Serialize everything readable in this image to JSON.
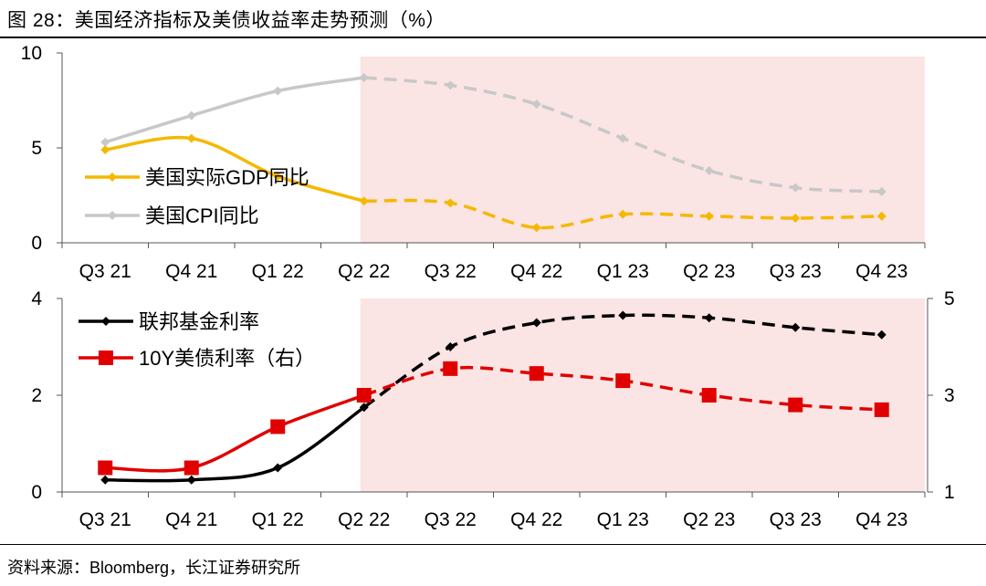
{
  "figure": {
    "title": "图 28：美国经济指标及美债收益率走势预测（%）",
    "source": "资料来源：Bloomberg，长江证券研究所",
    "forecast_shading_color": "#fbe4e4"
  },
  "chart_data": [
    {
      "type": "line",
      "title": "",
      "categories": [
        "Q3 21",
        "Q4 21",
        "Q1 22",
        "Q2 22",
        "Q3 22",
        "Q4 22",
        "Q1 23",
        "Q2 23",
        "Q3 23",
        "Q4 23"
      ],
      "ylim": [
        0,
        10
      ],
      "yticks": [
        "0",
        "5",
        "10"
      ],
      "forecast_from_index": 3,
      "legend": "left-middle",
      "series": [
        {
          "name": "美国实际GDP同比",
          "color": "#f5b800",
          "marker": "diamond",
          "axis": "left",
          "values": [
            4.9,
            5.5,
            3.5,
            2.2,
            2.1,
            0.8,
            1.5,
            1.4,
            1.3,
            1.4
          ]
        },
        {
          "name": "美国CPI同比",
          "color": "#c8c8c8",
          "marker": "diamond",
          "axis": "left",
          "values": [
            5.3,
            6.7,
            8.0,
            8.7,
            8.3,
            7.3,
            5.5,
            3.8,
            2.9,
            2.7
          ]
        }
      ]
    },
    {
      "type": "line",
      "title": "",
      "categories": [
        "Q3 21",
        "Q4 21",
        "Q1 22",
        "Q2 22",
        "Q3 22",
        "Q4 22",
        "Q1 23",
        "Q2 23",
        "Q3 23",
        "Q4 23"
      ],
      "ylim": [
        0,
        4
      ],
      "yticks": [
        "0",
        "2",
        "4"
      ],
      "y2lim": [
        1,
        5
      ],
      "y2ticks": [
        "1",
        "3",
        "5"
      ],
      "forecast_from_index": 3,
      "legend": "top-left",
      "series": [
        {
          "name": "联邦基金利率",
          "color": "#000000",
          "marker": "diamond",
          "axis": "left",
          "values": [
            0.25,
            0.25,
            0.5,
            1.75,
            3.0,
            3.5,
            3.65,
            3.6,
            3.4,
            3.25
          ]
        },
        {
          "name": "10Y美债利率（右）",
          "color": "#e00000",
          "marker": "square",
          "axis": "right",
          "values": [
            1.5,
            1.5,
            2.35,
            3.0,
            3.55,
            3.45,
            3.3,
            3.0,
            2.8,
            2.7
          ]
        }
      ]
    }
  ]
}
